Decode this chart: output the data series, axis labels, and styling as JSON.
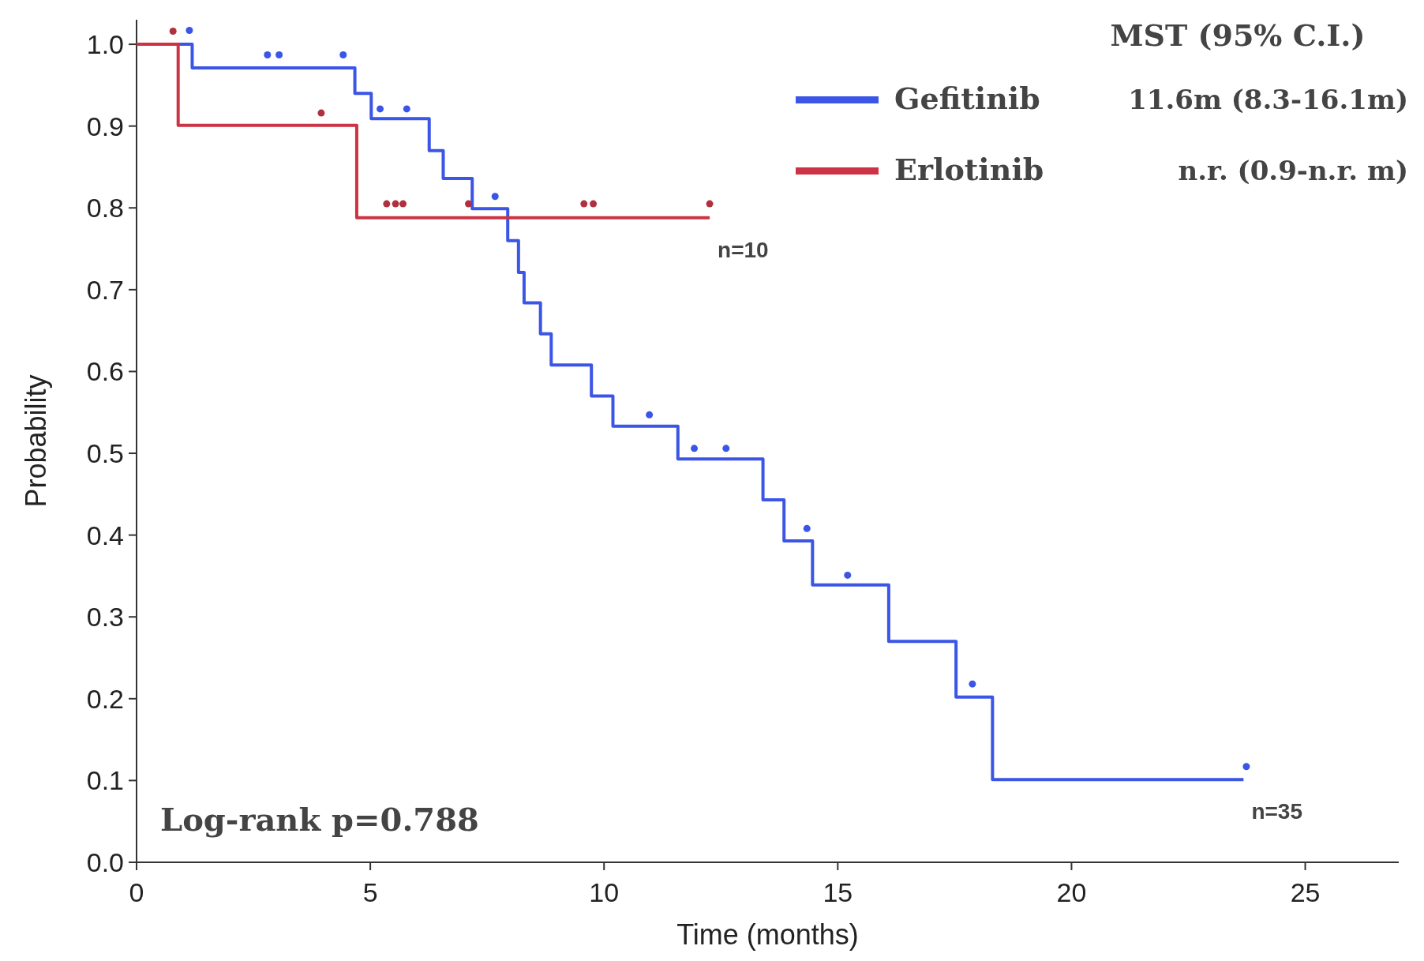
{
  "chart_data": {
    "type": "step",
    "xlabel": "Time (months)",
    "ylabel": "Probability",
    "xlim": [
      0,
      27
    ],
    "xticks": [
      0,
      5,
      10,
      15,
      20,
      25
    ],
    "ylim": [
      0,
      1.03
    ],
    "yticks": [
      {
        "value": 0,
        "label": "0.0"
      },
      {
        "value": 0.1,
        "label": "0.1"
      },
      {
        "value": 0.2,
        "label": "0.2"
      },
      {
        "value": 0.3,
        "label": "0.3"
      },
      {
        "value": 0.4,
        "label": "0.4"
      },
      {
        "value": 0.5,
        "label": "0.5"
      },
      {
        "value": 0.6,
        "label": "0.6"
      },
      {
        "value": 0.7,
        "label": "0.7"
      },
      {
        "value": 0.8,
        "label": "0.8"
      },
      {
        "value": 0.9,
        "label": "0.9"
      },
      {
        "value": 1,
        "label": "1.0"
      }
    ],
    "grid": false,
    "legend": "top right",
    "legend_title": "MST (95% C.I.)",
    "series": [
      {
        "name": "Gefitinib",
        "color": "#3b55e6",
        "x": [
          0,
          1.19,
          4.67,
          5.02,
          6.26,
          6.56,
          7.18,
          7.94,
          8.17,
          8.29,
          8.64,
          8.87,
          9.73,
          10.19,
          11.58,
          13.4,
          13.85,
          14.46,
          16.09,
          17.53,
          18.31,
          23.68
        ],
        "values": [
          1,
          0.971,
          0.94,
          0.909,
          0.87,
          0.836,
          0.799,
          0.76,
          0.721,
          0.684,
          0.646,
          0.608,
          0.57,
          0.533,
          0.493,
          0.443,
          0.393,
          0.339,
          0.27,
          0.202,
          0.101,
          0.101
        ]
      },
      {
        "name": "Erlotinib",
        "color": "#cc3344",
        "x": [
          0,
          0.89,
          4.71,
          12.26
        ],
        "values": [
          1,
          0.901,
          0.788,
          0.788
        ]
      },
      {
        "color": "#3b55e6",
        "type": "scatter",
        "marker": "circle",
        "x": [
          1.13,
          2.8,
          3.05,
          4.42,
          5.21,
          5.78,
          7.67,
          10.97,
          11.93,
          12.61,
          14.34,
          15.21,
          17.88,
          23.74
        ],
        "values": [
          1.017,
          0.987,
          0.987,
          0.987,
          0.921,
          0.921,
          0.814,
          0.547,
          0.506,
          0.506,
          0.408,
          0.351,
          0.218,
          0.117
        ]
      },
      {
        "color": "#b03040",
        "type": "scatter",
        "marker": "circle",
        "x": [
          0.78,
          3.95,
          5.35,
          5.54,
          5.7,
          7.1,
          9.57,
          9.77,
          12.26
        ],
        "values": [
          1.016,
          0.916,
          0.805,
          0.805,
          0.805,
          0.805,
          0.805,
          0.805,
          0.805
        ]
      }
    ],
    "annotations": [
      "11.6m (8.3-16.1m)",
      "n.r. (0.9-n.r. m)",
      {
        "text": "n=10",
        "x": 12.26,
        "y": 0.788
      },
      {
        "text": "n=35",
        "x": 23.68,
        "y": 0.101
      },
      "Log-rank p=0.788"
    ]
  }
}
